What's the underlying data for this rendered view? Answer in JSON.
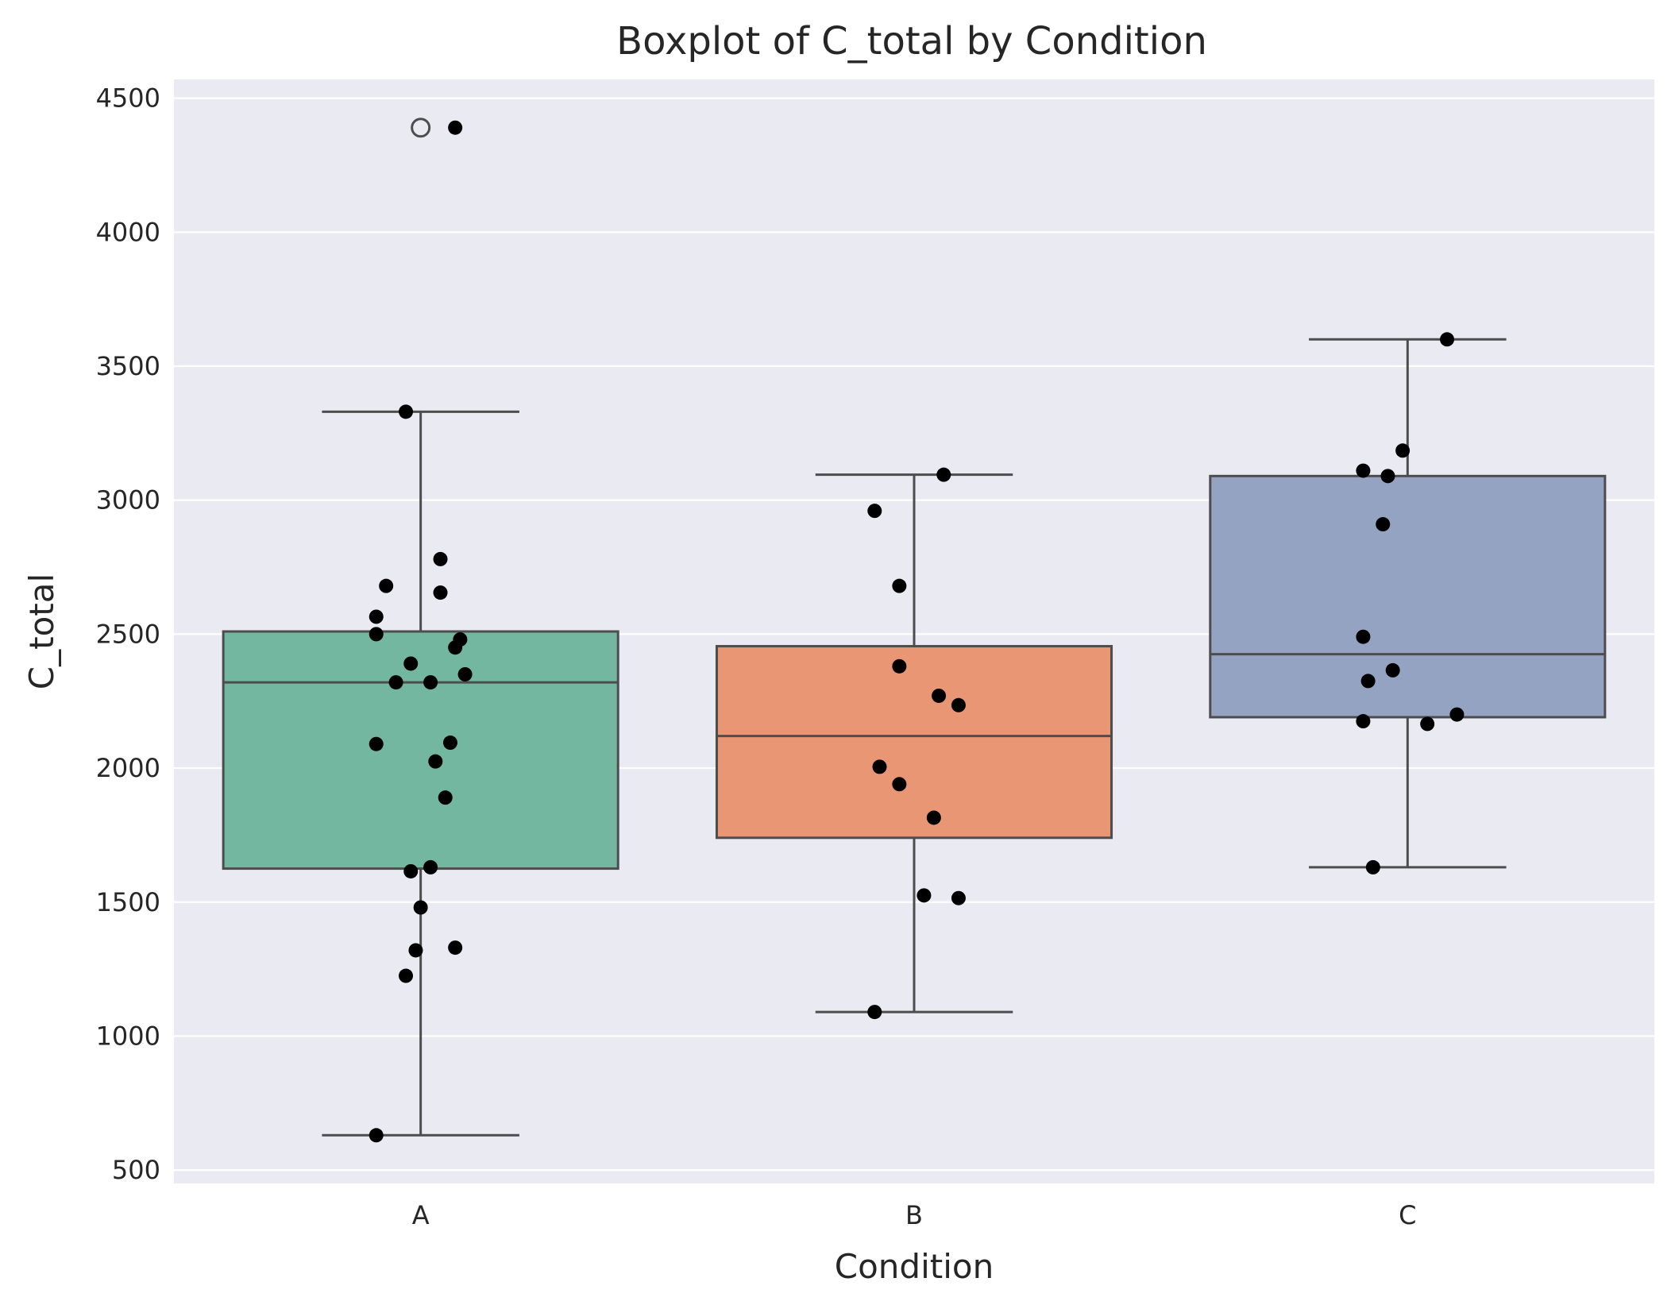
{
  "chart_data": {
    "type": "box",
    "title": "Boxplot of C_total by Condition",
    "xlabel": "Condition",
    "ylabel": "C_total",
    "categories": [
      "A",
      "B",
      "C"
    ],
    "ylim": [
      450,
      4570
    ],
    "yticks": [
      500,
      1000,
      1500,
      2000,
      2500,
      3000,
      3500,
      4000,
      4500
    ],
    "grid": true,
    "colors": {
      "background": "#EAEAF2",
      "grid": "#FFFFFF",
      "box_edge": "#4D4D4D",
      "points": "#000000",
      "boxes": [
        "#73B7A0",
        "#E99675",
        "#95A3C2"
      ]
    },
    "boxes": [
      {
        "category": "A",
        "whisker_low": 630,
        "q1": 1625,
        "median": 2320,
        "q3": 2510,
        "whisker_high": 3330,
        "outliers": [
          4390
        ]
      },
      {
        "category": "B",
        "whisker_low": 1090,
        "q1": 1740,
        "median": 2120,
        "q3": 2455,
        "whisker_high": 3095,
        "outliers": []
      },
      {
        "category": "C",
        "whisker_low": 1630,
        "q1": 2190,
        "median": 2425,
        "q3": 3090,
        "whisker_high": 3600,
        "outliers": []
      }
    ],
    "points": [
      {
        "category": "A",
        "jitter": 0.07,
        "y": 4390
      },
      {
        "category": "A",
        "jitter": -0.03,
        "y": 3330
      },
      {
        "category": "A",
        "jitter": 0.04,
        "y": 2780
      },
      {
        "category": "A",
        "jitter": -0.07,
        "y": 2680
      },
      {
        "category": "A",
        "jitter": 0.04,
        "y": 2655
      },
      {
        "category": "A",
        "jitter": -0.09,
        "y": 2565
      },
      {
        "category": "A",
        "jitter": -0.09,
        "y": 2500
      },
      {
        "category": "A",
        "jitter": 0.08,
        "y": 2480
      },
      {
        "category": "A",
        "jitter": 0.07,
        "y": 2450
      },
      {
        "category": "A",
        "jitter": -0.02,
        "y": 2390
      },
      {
        "category": "A",
        "jitter": 0.09,
        "y": 2350
      },
      {
        "category": "A",
        "jitter": -0.05,
        "y": 2320
      },
      {
        "category": "A",
        "jitter": 0.02,
        "y": 2320
      },
      {
        "category": "A",
        "jitter": 0.06,
        "y": 2095
      },
      {
        "category": "A",
        "jitter": -0.09,
        "y": 2090
      },
      {
        "category": "A",
        "jitter": 0.03,
        "y": 2025
      },
      {
        "category": "A",
        "jitter": 0.05,
        "y": 1890
      },
      {
        "category": "A",
        "jitter": 0.02,
        "y": 1630
      },
      {
        "category": "A",
        "jitter": -0.02,
        "y": 1615
      },
      {
        "category": "A",
        "jitter": 0.0,
        "y": 1480
      },
      {
        "category": "A",
        "jitter": 0.07,
        "y": 1330
      },
      {
        "category": "A",
        "jitter": -0.01,
        "y": 1320
      },
      {
        "category": "A",
        "jitter": -0.03,
        "y": 1225
      },
      {
        "category": "A",
        "jitter": -0.09,
        "y": 630
      },
      {
        "category": "B",
        "jitter": 0.06,
        "y": 3095
      },
      {
        "category": "B",
        "jitter": -0.08,
        "y": 2960
      },
      {
        "category": "B",
        "jitter": -0.03,
        "y": 2680
      },
      {
        "category": "B",
        "jitter": -0.03,
        "y": 2380
      },
      {
        "category": "B",
        "jitter": 0.05,
        "y": 2270
      },
      {
        "category": "B",
        "jitter": 0.09,
        "y": 2235
      },
      {
        "category": "B",
        "jitter": -0.07,
        "y": 2005
      },
      {
        "category": "B",
        "jitter": -0.03,
        "y": 1940
      },
      {
        "category": "B",
        "jitter": 0.04,
        "y": 1815
      },
      {
        "category": "B",
        "jitter": 0.02,
        "y": 1525
      },
      {
        "category": "B",
        "jitter": 0.09,
        "y": 1515
      },
      {
        "category": "B",
        "jitter": -0.08,
        "y": 1090
      },
      {
        "category": "C",
        "jitter": 0.08,
        "y": 3600
      },
      {
        "category": "C",
        "jitter": -0.01,
        "y": 3185
      },
      {
        "category": "C",
        "jitter": -0.09,
        "y": 3110
      },
      {
        "category": "C",
        "jitter": -0.04,
        "y": 3090
      },
      {
        "category": "C",
        "jitter": -0.05,
        "y": 2910
      },
      {
        "category": "C",
        "jitter": -0.09,
        "y": 2490
      },
      {
        "category": "C",
        "jitter": -0.03,
        "y": 2365
      },
      {
        "category": "C",
        "jitter": -0.08,
        "y": 2325
      },
      {
        "category": "C",
        "jitter": 0.1,
        "y": 2200
      },
      {
        "category": "C",
        "jitter": -0.09,
        "y": 2175
      },
      {
        "category": "C",
        "jitter": 0.04,
        "y": 2165
      },
      {
        "category": "C",
        "jitter": -0.07,
        "y": 1630
      }
    ]
  }
}
